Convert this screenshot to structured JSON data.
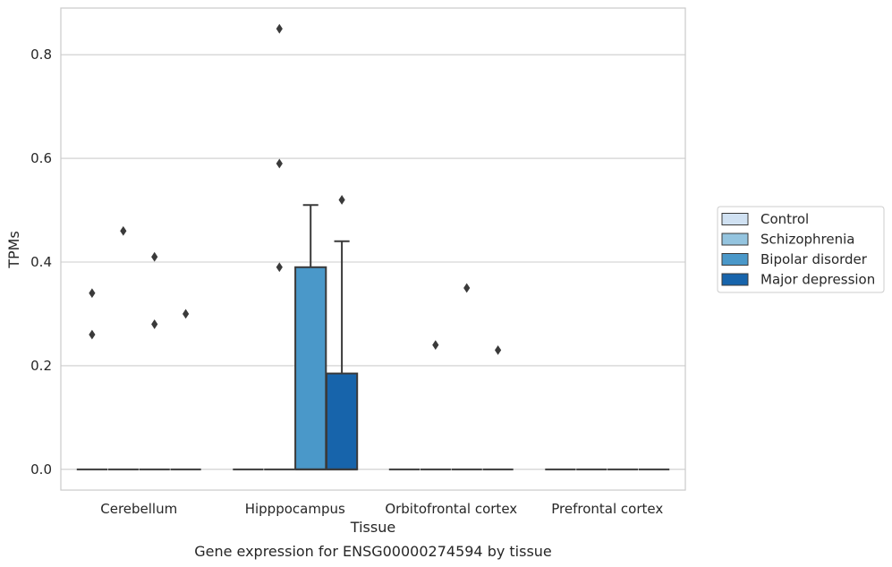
{
  "chart_data": {
    "type": "box",
    "title": "",
    "caption": "Gene expression for ENSG00000274594 by tissue",
    "xlabel": "Tissue",
    "ylabel": "TPMs",
    "ylim": [
      -0.04,
      0.89
    ],
    "yticks": [
      0.0,
      0.2,
      0.4,
      0.6,
      0.8
    ],
    "ytick_labels": [
      "0.0",
      "0.2",
      "0.4",
      "0.6",
      "0.8"
    ],
    "grid": "horizontal",
    "legend_position": "right",
    "categories": [
      "Cerebellum",
      "Hipppocampus",
      "Orbitofrontal cortex",
      "Prefrontal cortex"
    ],
    "series": [
      {
        "name": "Control",
        "color": "#d0e1f2",
        "boxes": [
          {
            "q1": 0,
            "median": 0,
            "q3": 0,
            "whisker_low": 0,
            "whisker_high": 0,
            "outliers": [
              0.34,
              0.26
            ]
          },
          {
            "q1": 0,
            "median": 0,
            "q3": 0,
            "whisker_low": 0,
            "whisker_high": 0,
            "outliers": []
          },
          {
            "q1": 0,
            "median": 0,
            "q3": 0,
            "whisker_low": 0,
            "whisker_high": 0,
            "outliers": []
          },
          {
            "q1": 0,
            "median": 0,
            "q3": 0,
            "whisker_low": 0,
            "whisker_high": 0,
            "outliers": []
          }
        ]
      },
      {
        "name": "Schizophrenia",
        "color": "#94c4df",
        "boxes": [
          {
            "q1": 0,
            "median": 0,
            "q3": 0,
            "whisker_low": 0,
            "whisker_high": 0,
            "outliers": [
              0.46
            ]
          },
          {
            "q1": 0,
            "median": 0,
            "q3": 0,
            "whisker_low": 0,
            "whisker_high": 0,
            "outliers": [
              0.85,
              0.59,
              0.39
            ]
          },
          {
            "q1": 0,
            "median": 0,
            "q3": 0,
            "whisker_low": 0,
            "whisker_high": 0,
            "outliers": [
              0.24
            ]
          },
          {
            "q1": 0,
            "median": 0,
            "q3": 0,
            "whisker_low": 0,
            "whisker_high": 0,
            "outliers": []
          }
        ]
      },
      {
        "name": "Bipolar disorder",
        "color": "#4a98c9",
        "boxes": [
          {
            "q1": 0,
            "median": 0,
            "q3": 0,
            "whisker_low": 0,
            "whisker_high": 0,
            "outliers": [
              0.41,
              0.28
            ]
          },
          {
            "q1": 0,
            "median": 0,
            "q3": 0.39,
            "whisker_low": 0,
            "whisker_high": 0.51,
            "outliers": []
          },
          {
            "q1": 0,
            "median": 0,
            "q3": 0,
            "whisker_low": 0,
            "whisker_high": 0,
            "outliers": [
              0.35
            ]
          },
          {
            "q1": 0,
            "median": 0,
            "q3": 0,
            "whisker_low": 0,
            "whisker_high": 0,
            "outliers": []
          }
        ]
      },
      {
        "name": "Major depression",
        "color": "#1764ab",
        "boxes": [
          {
            "q1": 0,
            "median": 0,
            "q3": 0,
            "whisker_low": 0,
            "whisker_high": 0,
            "outliers": [
              0.3
            ]
          },
          {
            "q1": 0,
            "median": 0,
            "q3": 0.185,
            "whisker_low": 0,
            "whisker_high": 0.44,
            "outliers": [
              0.52
            ]
          },
          {
            "q1": 0,
            "median": 0,
            "q3": 0,
            "whisker_low": 0,
            "whisker_high": 0,
            "outliers": [
              0.23
            ]
          },
          {
            "q1": 0,
            "median": 0,
            "q3": 0,
            "whisker_low": 0,
            "whisker_high": 0,
            "outliers": []
          }
        ]
      }
    ]
  }
}
